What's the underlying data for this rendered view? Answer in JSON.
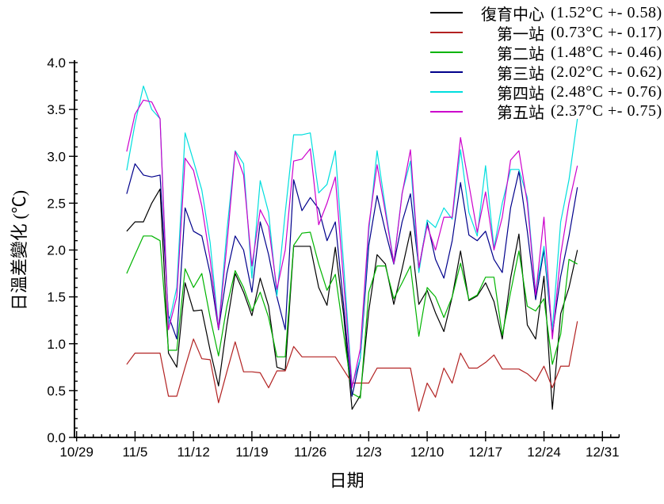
{
  "chart_data": {
    "type": "line",
    "title": "",
    "xlabel": "日期",
    "ylabel": "日溫差變化 (℃)",
    "ylim": [
      0.0,
      4.0
    ],
    "y_major_step": 0.5,
    "y_minor_step": 0.1,
    "x_ticklabels": [
      "10/29",
      "11/5",
      "11/12",
      "11/19",
      "11/26",
      "12/3",
      "12/10",
      "12/17",
      "12/24",
      "12/31"
    ],
    "x_major_every_days": 7,
    "x_axis_days": 65,
    "grid": "off",
    "legend_position": "top-right",
    "start_day_offset": 6,
    "dates": [
      "11/4",
      "11/5",
      "11/6",
      "11/7",
      "11/8",
      "11/9",
      "11/10",
      "11/11",
      "11/12",
      "11/13",
      "11/14",
      "11/15",
      "11/16",
      "11/17",
      "11/18",
      "11/19",
      "11/20",
      "11/21",
      "11/22",
      "11/23",
      "11/24",
      "11/25",
      "11/26",
      "11/27",
      "11/28",
      "11/29",
      "11/30",
      "12/1",
      "12/2",
      "12/3",
      "12/4",
      "12/5",
      "12/6",
      "12/7",
      "12/8",
      "12/9",
      "12/10",
      "12/11",
      "12/12",
      "12/13",
      "12/14",
      "12/15",
      "12/16",
      "12/17",
      "12/18",
      "12/19",
      "12/20",
      "12/21",
      "12/22",
      "12/23",
      "12/24",
      "12/25",
      "12/26",
      "12/27",
      "12/28"
    ],
    "series": [
      {
        "name": "復育中心",
        "stats": "(1.52°C +- 0.58)",
        "color": "#000000",
        "values": [
          2.2,
          2.3,
          2.3,
          2.5,
          2.65,
          0.9,
          0.75,
          1.65,
          1.35,
          1.36,
          0.93,
          0.55,
          1.2,
          1.75,
          1.55,
          1.3,
          1.7,
          1.4,
          0.75,
          0.72,
          2.04,
          2.04,
          2.04,
          1.6,
          1.41,
          2.03,
          1.3,
          0.3,
          0.45,
          1.35,
          1.95,
          1.85,
          1.42,
          1.8,
          2.2,
          1.42,
          1.57,
          1.33,
          1.13,
          1.5,
          1.99,
          1.46,
          1.51,
          1.65,
          1.45,
          1.05,
          1.7,
          2.17,
          1.2,
          1.05,
          1.72,
          0.3,
          1.32,
          1.6,
          2.0
        ]
      },
      {
        "name": "第一站",
        "stats": "(0.73°C +- 0.17)",
        "color": "#b22222",
        "values": [
          0.78,
          0.9,
          0.9,
          0.9,
          0.9,
          0.44,
          0.44,
          0.75,
          1.05,
          0.84,
          0.83,
          0.37,
          0.7,
          1.02,
          0.7,
          0.7,
          0.69,
          0.53,
          0.71,
          0.71,
          0.97,
          0.86,
          0.86,
          0.86,
          0.86,
          0.86,
          0.72,
          0.58,
          0.58,
          0.58,
          0.74,
          0.74,
          0.74,
          0.74,
          0.74,
          0.28,
          0.58,
          0.43,
          0.74,
          0.58,
          0.9,
          0.74,
          0.74,
          0.8,
          0.88,
          0.73,
          0.73,
          0.73,
          0.68,
          0.6,
          0.76,
          0.53,
          0.76,
          0.76,
          1.24
        ]
      },
      {
        "name": "第二站",
        "stats": "(1.48°C +- 0.46)",
        "color": "#00b400",
        "values": [
          1.75,
          1.95,
          2.15,
          2.15,
          2.1,
          0.93,
          0.93,
          1.8,
          1.6,
          1.75,
          1.28,
          0.87,
          1.4,
          1.78,
          1.6,
          1.35,
          1.55,
          1.28,
          0.86,
          0.86,
          2.05,
          2.18,
          2.19,
          1.85,
          1.57,
          1.74,
          1.1,
          0.47,
          0.42,
          1.55,
          1.83,
          1.83,
          1.48,
          1.65,
          1.83,
          1.08,
          1.6,
          1.5,
          1.28,
          1.5,
          1.86,
          1.47,
          1.52,
          1.71,
          1.71,
          1.09,
          1.55,
          1.99,
          1.4,
          1.35,
          1.48,
          0.78,
          1.1,
          1.9,
          1.85
        ]
      },
      {
        "name": "第三站",
        "stats": "(2.02°C +- 0.62)",
        "color": "#00008b",
        "values": [
          2.6,
          2.92,
          2.8,
          2.78,
          2.8,
          1.3,
          1.05,
          2.45,
          2.2,
          2.15,
          1.75,
          1.15,
          1.75,
          2.15,
          2.0,
          1.55,
          2.3,
          1.95,
          1.5,
          1.15,
          2.75,
          2.42,
          2.56,
          2.44,
          2.1,
          2.3,
          1.4,
          0.44,
          0.85,
          2.05,
          2.58,
          2.2,
          1.85,
          2.3,
          2.6,
          1.8,
          2.3,
          1.9,
          1.7,
          2.1,
          2.72,
          2.16,
          2.1,
          2.2,
          1.9,
          1.76,
          2.45,
          2.84,
          2.2,
          1.47,
          2.0,
          1.1,
          1.72,
          2.15,
          2.67
        ]
      },
      {
        "name": "第四站",
        "stats": "(2.48°C +- 0.76)",
        "color": "#00dede",
        "values": [
          2.85,
          3.35,
          3.75,
          3.5,
          3.4,
          1.2,
          1.6,
          3.25,
          2.95,
          2.64,
          2.08,
          1.16,
          2.2,
          3.06,
          2.92,
          1.7,
          2.74,
          2.4,
          1.51,
          2.4,
          3.23,
          3.23,
          3.25,
          2.61,
          2.7,
          3.06,
          1.83,
          0.55,
          0.85,
          2.2,
          3.06,
          2.45,
          1.86,
          2.61,
          2.95,
          1.76,
          2.32,
          2.24,
          2.45,
          2.33,
          3.07,
          2.4,
          2.15,
          2.9,
          2.02,
          2.5,
          2.86,
          2.86,
          2.56,
          1.55,
          2.04,
          1.15,
          2.3,
          2.75,
          3.4
        ]
      },
      {
        "name": "第五站",
        "stats": "(2.37°C +- 0.75)",
        "color": "#cc00cc",
        "values": [
          3.05,
          3.45,
          3.6,
          3.58,
          3.4,
          1.15,
          1.5,
          2.98,
          2.85,
          2.47,
          1.9,
          1.16,
          2.05,
          3.05,
          2.8,
          1.83,
          2.43,
          2.25,
          1.58,
          2.0,
          2.95,
          2.97,
          3.08,
          2.27,
          2.5,
          2.78,
          1.65,
          0.53,
          0.95,
          2.26,
          2.91,
          2.4,
          1.86,
          2.6,
          3.07,
          1.81,
          2.26,
          2.0,
          2.35,
          2.35,
          3.2,
          2.7,
          2.19,
          2.62,
          2.0,
          2.35,
          2.96,
          3.06,
          2.5,
          1.52,
          2.35,
          1.05,
          1.95,
          2.5,
          2.9
        ]
      }
    ]
  }
}
